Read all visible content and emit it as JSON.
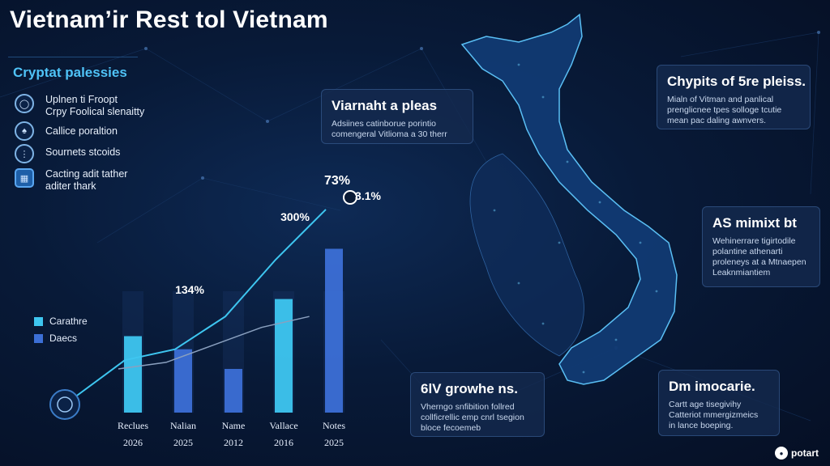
{
  "title": "Vietnam’ir Rest tol Vietnam",
  "sidebar": {
    "heading": "Cryptat palessies",
    "items": [
      {
        "label": "Uplnen ti Froopt\nCrpy Foolical slenaitty",
        "icon": "shield-icon"
      },
      {
        "label": "Callice poraltion",
        "icon": "people-icon"
      },
      {
        "label": "Sournets stcoids",
        "icon": "chart-icon"
      },
      {
        "label": "Cacting adit tather\naditer thark",
        "icon": "building-icon"
      }
    ]
  },
  "cards": {
    "vietnam_plies": {
      "title": "Viarnaht a pleas",
      "body": "Adsiines catinborue porintio\ncomengeral Vitlioma a 30 therr"
    },
    "crypts": {
      "title": "Chypits of 5re pleiss.",
      "body": "Mialn of Vitman and panlical\nprenglicnee tpes solloge tcutie\nmean pac daling awnvers."
    },
    "as_mimix": {
      "title": "AS mimixt bt",
      "body": "Wehinerrare tigirtodile\npolantine athenarti\nproleneys at a Mtnaepen\nLeaknmiantiem"
    },
    "growth": {
      "title": "6lV growhe ns.",
      "body": "Vherngo snfibition follred\ncollficrellic emp cnrl tsegion\nbloce fecoemeb"
    },
    "dm": {
      "title": "Dm imocarie.",
      "body": "Cartt age tisegivihy\nCatteriot mmergizmeics\nin lance boeping."
    }
  },
  "chart_data": {
    "type": "bar",
    "categories": [
      "Reclues",
      "Nalian",
      "Name",
      "Vallace",
      "Notes"
    ],
    "years": [
      "2026",
      "2025",
      "2012",
      "2016",
      "2025"
    ],
    "series": [
      {
        "name": "Carathre",
        "color": "#3ec6f0",
        "values": [
          35,
          0,
          0,
          52,
          0
        ]
      },
      {
        "name": "Daecs",
        "color": "#3c6fd6",
        "values": [
          0,
          29,
          20,
          0,
          75
        ]
      }
    ],
    "line_values": [
      24,
      29,
      44,
      70,
      93
    ],
    "secondary_line_values": [
      20,
      23,
      31,
      39,
      44
    ],
    "labels": [
      "134%",
      "300%",
      "73%",
      "3.1%"
    ],
    "ylim": [
      0,
      100
    ]
  },
  "brand": {
    "label": "potart",
    "icon": "hex-icon"
  }
}
